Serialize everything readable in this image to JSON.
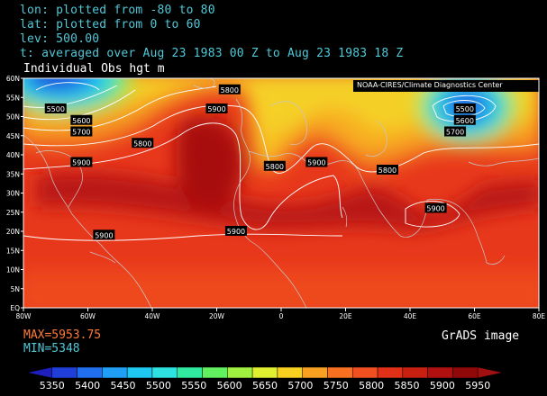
{
  "header": {
    "lon_line": "lon: plotted from -80 to 80",
    "lat_line": "lat: plotted from 0 to 60",
    "lev_line": "lev: 500.00",
    "time_line": "t: averaged over Aug 23 1983 00 Z to Aug 23 1983 18 Z"
  },
  "subtitle": "Individual Obs hgt m",
  "credit": "NOAA-CIRES/Climate Diagnostics Center",
  "stats": {
    "max_text": "MAX=5953.75",
    "min_text": "MIN=5348"
  },
  "watermark": "GrADS image",
  "axes": {
    "x_ticks": [
      "80W",
      "60W",
      "40W",
      "20W",
      "0",
      "20E",
      "40E",
      "60E",
      "80E"
    ],
    "y_ticks": [
      "EQ",
      "5N",
      "10N",
      "15N",
      "20N",
      "25N",
      "30N",
      "35N",
      "40N",
      "45N",
      "50N",
      "55N",
      "60N"
    ]
  },
  "contour_labels": [
    {
      "text": "5500",
      "lon": -70,
      "lat": 52
    },
    {
      "text": "5600",
      "lon": -62,
      "lat": 49
    },
    {
      "text": "5700",
      "lon": -62,
      "lat": 46
    },
    {
      "text": "5800",
      "lon": -43,
      "lat": 43
    },
    {
      "text": "5800",
      "lon": -16,
      "lat": 57
    },
    {
      "text": "5900",
      "lon": -20,
      "lat": 52
    },
    {
      "text": "5900",
      "lon": -62,
      "lat": 38
    },
    {
      "text": "5800",
      "lon": -2,
      "lat": 37
    },
    {
      "text": "5900",
      "lon": 11,
      "lat": 38
    },
    {
      "text": "5800",
      "lon": 33,
      "lat": 36
    },
    {
      "text": "5500",
      "lon": 57,
      "lat": 52
    },
    {
      "text": "5600",
      "lon": 57,
      "lat": 49
    },
    {
      "text": "5700",
      "lon": 54,
      "lat": 46
    },
    {
      "text": "5900",
      "lon": 48,
      "lat": 26
    },
    {
      "text": "5900",
      "lon": -55,
      "lat": 19
    },
    {
      "text": "5900",
      "lon": -14,
      "lat": 20
    }
  ],
  "colorbar": {
    "labels": [
      "5350",
      "5400",
      "5450",
      "5500",
      "5550",
      "5600",
      "5650",
      "5700",
      "5750",
      "5800",
      "5850",
      "5900",
      "5950"
    ],
    "colors": [
      "#1f1fbf",
      "#1f3fd8",
      "#1f6ff0",
      "#1f9ff5",
      "#1fc8f0",
      "#2fe0e0",
      "#30e8a0",
      "#60f060",
      "#a0f040",
      "#e0f030",
      "#f8d020",
      "#f8a020",
      "#f87020",
      "#f05020",
      "#e03018",
      "#c82010",
      "#b01010",
      "#900808",
      "#a01010"
    ]
  },
  "chart_data": {
    "type": "heatmap",
    "variable": "Individual Obs hgt m",
    "level": 500.0,
    "lon_range": [
      -80,
      80
    ],
    "lat_range": [
      0,
      60
    ],
    "max": 5953.75,
    "min": 5348,
    "contour_interval": 100,
    "contour_levels": [
      5500,
      5600,
      5700,
      5800,
      5900
    ],
    "colorbar_levels": [
      5350,
      5400,
      5450,
      5500,
      5550,
      5600,
      5650,
      5700,
      5750,
      5800,
      5850,
      5900,
      5950
    ]
  }
}
